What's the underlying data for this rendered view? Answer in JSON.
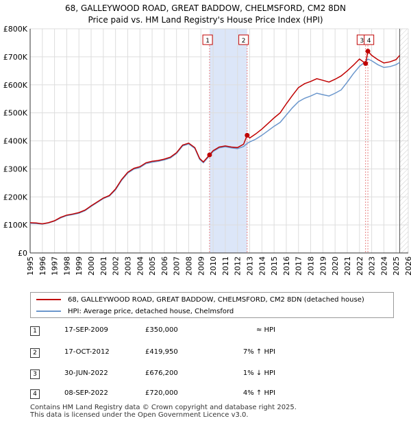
{
  "titles": {
    "line1": "68, GALLEYWOOD ROAD, GREAT BADDOW, CHELMSFORD, CM2 8DN",
    "line2": "Price paid vs. HM Land Registry's House Price Index (HPI)"
  },
  "chart_data": {
    "type": "line",
    "title": "Price paid vs. HM Land Registry's House Price Index (HPI)",
    "xlim": [
      1995,
      2026
    ],
    "ylim": [
      0,
      800000
    ],
    "y_ticks": [
      {
        "value": 0,
        "label": "£0"
      },
      {
        "value": 100000,
        "label": "£100K"
      },
      {
        "value": 200000,
        "label": "£200K"
      },
      {
        "value": 300000,
        "label": "£300K"
      },
      {
        "value": 400000,
        "label": "£400K"
      },
      {
        "value": 500000,
        "label": "£500K"
      },
      {
        "value": 600000,
        "label": "£600K"
      },
      {
        "value": 700000,
        "label": "£700K"
      },
      {
        "value": 800000,
        "label": "£800K"
      }
    ],
    "x_ticks": [
      "1995",
      "1996",
      "1997",
      "1998",
      "1999",
      "2000",
      "2001",
      "2002",
      "2003",
      "2004",
      "2005",
      "2006",
      "2007",
      "2008",
      "2009",
      "2010",
      "2011",
      "2012",
      "2013",
      "2014",
      "2015",
      "2016",
      "2017",
      "2018",
      "2019",
      "2020",
      "2021",
      "2022",
      "2023",
      "2024",
      "2025",
      "2026"
    ],
    "shaded_span": [
      2009.71,
      2012.79
    ],
    "colors": {
      "property": "#c00000",
      "hpi": "#6a96cc",
      "shade": "#dce6f8",
      "sale_line": "#e88080",
      "grid": "#dddddd"
    },
    "series": [
      {
        "name": "68, GALLEYWOOD ROAD, GREAT BADDOW, CHELMSFORD, CM2 8DN (detached house)",
        "color": "#c00000",
        "points": [
          [
            1995.0,
            108000
          ],
          [
            1995.5,
            107000
          ],
          [
            1996.0,
            104000
          ],
          [
            1996.5,
            108000
          ],
          [
            1997.0,
            115000
          ],
          [
            1997.5,
            127000
          ],
          [
            1998.0,
            135000
          ],
          [
            1998.5,
            139000
          ],
          [
            1999.0,
            144000
          ],
          [
            1999.5,
            153000
          ],
          [
            2000.0,
            168000
          ],
          [
            2000.5,
            182000
          ],
          [
            2001.0,
            196000
          ],
          [
            2001.5,
            205000
          ],
          [
            2002.0,
            228000
          ],
          [
            2002.5,
            262000
          ],
          [
            2003.0,
            288000
          ],
          [
            2003.5,
            302000
          ],
          [
            2004.0,
            308000
          ],
          [
            2004.5,
            322000
          ],
          [
            2005.0,
            327000
          ],
          [
            2005.5,
            330000
          ],
          [
            2006.0,
            335000
          ],
          [
            2006.5,
            342000
          ],
          [
            2007.0,
            358000
          ],
          [
            2007.5,
            385000
          ],
          [
            2008.0,
            392000
          ],
          [
            2008.5,
            376000
          ],
          [
            2008.9,
            337000
          ],
          [
            2009.2,
            325000
          ],
          [
            2009.71,
            350000
          ],
          [
            2010.0,
            365000
          ],
          [
            2010.5,
            378000
          ],
          [
            2011.0,
            382000
          ],
          [
            2011.5,
            378000
          ],
          [
            2012.0,
            376000
          ],
          [
            2012.5,
            388000
          ],
          [
            2012.79,
            419950
          ],
          [
            2013.0,
            410000
          ],
          [
            2013.5,
            425000
          ],
          [
            2014.0,
            442000
          ],
          [
            2014.5,
            462000
          ],
          [
            2015.0,
            482000
          ],
          [
            2015.5,
            500000
          ],
          [
            2016.0,
            532000
          ],
          [
            2016.5,
            562000
          ],
          [
            2017.0,
            590000
          ],
          [
            2017.5,
            604000
          ],
          [
            2018.0,
            612000
          ],
          [
            2018.5,
            622000
          ],
          [
            2019.0,
            616000
          ],
          [
            2019.5,
            610000
          ],
          [
            2020.0,
            620000
          ],
          [
            2020.5,
            632000
          ],
          [
            2021.0,
            650000
          ],
          [
            2021.5,
            670000
          ],
          [
            2022.0,
            692000
          ],
          [
            2022.5,
            676200
          ],
          [
            2022.69,
            720000
          ],
          [
            2023.0,
            705000
          ],
          [
            2023.5,
            690000
          ],
          [
            2024.0,
            678000
          ],
          [
            2024.5,
            682000
          ],
          [
            2025.0,
            690000
          ],
          [
            2025.3,
            705000
          ]
        ]
      },
      {
        "name": "HPI: Average price, detached house, Chelmsford",
        "color": "#6a96cc",
        "points": [
          [
            1995.0,
            106000
          ],
          [
            1995.5,
            105000
          ],
          [
            1996.0,
            103000
          ],
          [
            1996.5,
            107000
          ],
          [
            1997.0,
            114000
          ],
          [
            1997.5,
            125000
          ],
          [
            1998.0,
            133000
          ],
          [
            1998.5,
            137000
          ],
          [
            1999.0,
            142000
          ],
          [
            1999.5,
            151000
          ],
          [
            2000.0,
            166000
          ],
          [
            2000.5,
            180000
          ],
          [
            2001.0,
            194000
          ],
          [
            2001.5,
            203000
          ],
          [
            2002.0,
            225000
          ],
          [
            2002.5,
            259000
          ],
          [
            2003.0,
            285000
          ],
          [
            2003.5,
            299000
          ],
          [
            2004.0,
            305000
          ],
          [
            2004.5,
            319000
          ],
          [
            2005.0,
            324000
          ],
          [
            2005.5,
            327000
          ],
          [
            2006.0,
            332000
          ],
          [
            2006.5,
            339000
          ],
          [
            2007.0,
            355000
          ],
          [
            2007.5,
            382000
          ],
          [
            2008.0,
            389000
          ],
          [
            2008.5,
            373000
          ],
          [
            2008.9,
            334000
          ],
          [
            2009.2,
            322000
          ],
          [
            2009.71,
            347000
          ],
          [
            2010.0,
            362000
          ],
          [
            2010.5,
            375000
          ],
          [
            2011.0,
            379000
          ],
          [
            2011.5,
            375000
          ],
          [
            2012.0,
            372000
          ],
          [
            2012.5,
            380000
          ],
          [
            2012.79,
            391000
          ],
          [
            2013.0,
            396000
          ],
          [
            2013.5,
            406000
          ],
          [
            2014.0,
            420000
          ],
          [
            2014.5,
            436000
          ],
          [
            2015.0,
            452000
          ],
          [
            2015.5,
            466000
          ],
          [
            2016.0,
            492000
          ],
          [
            2016.5,
            518000
          ],
          [
            2017.0,
            540000
          ],
          [
            2017.5,
            552000
          ],
          [
            2018.0,
            560000
          ],
          [
            2018.5,
            570000
          ],
          [
            2019.0,
            565000
          ],
          [
            2019.5,
            560000
          ],
          [
            2020.0,
            570000
          ],
          [
            2020.5,
            582000
          ],
          [
            2021.0,
            610000
          ],
          [
            2021.5,
            640000
          ],
          [
            2022.0,
            666000
          ],
          [
            2022.5,
            683000
          ],
          [
            2022.69,
            692000
          ],
          [
            2023.0,
            686000
          ],
          [
            2023.5,
            672000
          ],
          [
            2024.0,
            662000
          ],
          [
            2024.5,
            665000
          ],
          [
            2025.0,
            672000
          ],
          [
            2025.3,
            680000
          ]
        ]
      }
    ],
    "sales": [
      {
        "id": "1",
        "x": 2009.71,
        "price": 350000,
        "label_x": 2009.55
      },
      {
        "id": "2",
        "x": 2012.79,
        "price": 419950,
        "label_x": 2012.5
      },
      {
        "id": "3",
        "x": 2022.5,
        "price": 676200,
        "label_x": 2022.2
      },
      {
        "id": "4",
        "x": 2022.69,
        "price": 720000,
        "label_x": 2022.78
      }
    ]
  },
  "legend": {
    "property_label": "68, GALLEYWOOD ROAD, GREAT BADDOW, CHELMSFORD, CM2 8DN (detached house)",
    "hpi_label": "HPI: Average price, detached house, Chelmsford"
  },
  "sales_table": [
    {
      "num": "1",
      "date": "17-SEP-2009",
      "price": "£350,000",
      "hpi": "≈ HPI"
    },
    {
      "num": "2",
      "date": "17-OCT-2012",
      "price": "£419,950",
      "hpi": "7% ↑ HPI"
    },
    {
      "num": "3",
      "date": "30-JUN-2022",
      "price": "£676,200",
      "hpi": "1% ↓ HPI"
    },
    {
      "num": "4",
      "date": "08-SEP-2022",
      "price": "£720,000",
      "hpi": "4% ↑ HPI"
    }
  ],
  "footer": {
    "line1": "Contains HM Land Registry data © Crown copyright and database right 2025.",
    "line2": "This data is licensed under the Open Government Licence v3.0."
  }
}
